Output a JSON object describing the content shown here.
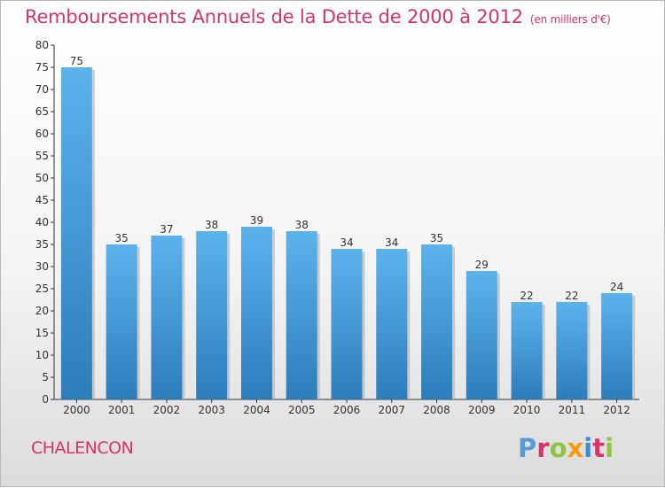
{
  "page": {
    "title": "Remboursements Annuels de la Dette de 2000 à 2012",
    "subtitle": "(en milliers d'€)",
    "commune": "CHALENCON",
    "logo": "Proxiti"
  },
  "colors": {
    "title": "#d6336c",
    "bar_top": "#5cb3ec",
    "bar_bottom": "#2c7dbb",
    "bar_shadow": "#a9a9a9",
    "logo_letters": [
      "#5b9bd5",
      "#d6336c",
      "#8cc63f",
      "#f39c12",
      "#3a8fd9",
      "#d6336c",
      "#8cc63f"
    ]
  },
  "chart_data": {
    "type": "bar",
    "categories": [
      "2000",
      "2001",
      "2002",
      "2003",
      "2004",
      "2005",
      "2006",
      "2007",
      "2008",
      "2009",
      "2010",
      "2011",
      "2012"
    ],
    "values": [
      75,
      35,
      37,
      38,
      39,
      38,
      34,
      34,
      35,
      29,
      22,
      22,
      24
    ],
    "title": "Remboursements Annuels de la Dette de 2000 à 2012",
    "xlabel": "",
    "ylabel": "",
    "ylim": [
      0,
      80
    ],
    "yticks": [
      0,
      5,
      10,
      15,
      20,
      25,
      30,
      35,
      40,
      45,
      50,
      55,
      60,
      65,
      70,
      75,
      80
    ],
    "grid": false,
    "legend": "none"
  }
}
